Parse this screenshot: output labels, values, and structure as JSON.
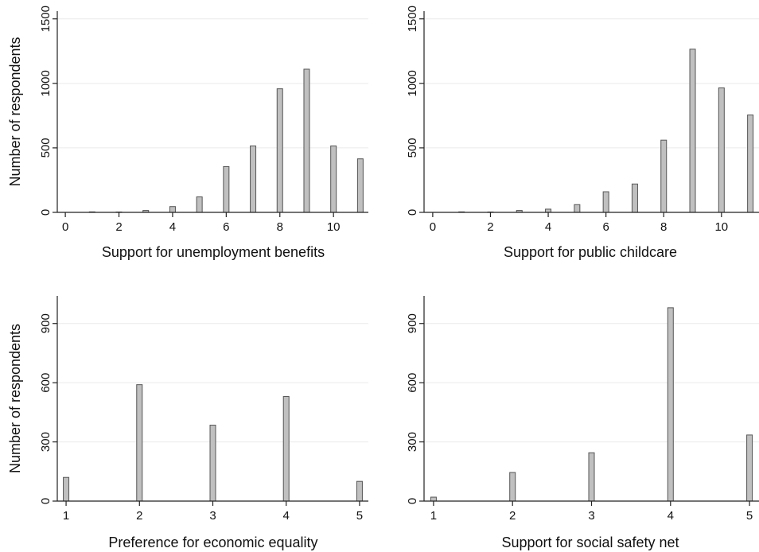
{
  "chart_data": [
    {
      "type": "bar",
      "xlabel": "Support for unemployment benefits",
      "ylabel": "Number of respondents",
      "x": [
        0,
        1,
        2,
        3,
        4,
        5,
        6,
        7,
        8,
        9,
        10,
        11
      ],
      "values": [
        0,
        4,
        3,
        15,
        45,
        120,
        355,
        515,
        958,
        1110,
        515,
        415
      ],
      "xlim": [
        -0.3,
        11.3
      ],
      "ylim": [
        0,
        1560
      ],
      "xticks": [
        0,
        2,
        4,
        6,
        8,
        10
      ],
      "yticks": [
        0,
        500,
        1000,
        1500
      ],
      "grid": true,
      "bar_color": "#c0c0c0"
    },
    {
      "type": "bar",
      "xlabel": "Support for public childcare",
      "ylabel": "",
      "x": [
        0,
        1,
        2,
        3,
        4,
        5,
        6,
        7,
        8,
        9,
        10,
        11
      ],
      "values": [
        0,
        4,
        3,
        15,
        25,
        60,
        160,
        220,
        560,
        1265,
        965,
        755
      ],
      "xlim": [
        -0.3,
        11.3
      ],
      "ylim": [
        0,
        1560
      ],
      "xticks": [
        0,
        2,
        4,
        6,
        8,
        10
      ],
      "yticks": [
        0,
        500,
        1000,
        1500
      ],
      "grid": true,
      "bar_color": "#c0c0c0"
    },
    {
      "type": "bar",
      "xlabel": "Preference for economic equality",
      "ylabel": "Number of respondents",
      "x": [
        1,
        2,
        3,
        4,
        5
      ],
      "values": [
        120,
        590,
        385,
        530,
        100
      ],
      "xlim": [
        0.88,
        5.12
      ],
      "ylim": [
        0,
        1040
      ],
      "xticks": [
        1,
        2,
        3,
        4,
        5
      ],
      "yticks": [
        0,
        300,
        600,
        900
      ],
      "grid": true,
      "bar_color": "#c0c0c0"
    },
    {
      "type": "bar",
      "xlabel": "Support for social safety net",
      "ylabel": "",
      "x": [
        1,
        2,
        3,
        4,
        5
      ],
      "values": [
        20,
        145,
        245,
        980,
        335
      ],
      "xlim": [
        0.88,
        5.12
      ],
      "ylim": [
        0,
        1040
      ],
      "xticks": [
        1,
        2,
        3,
        4,
        5
      ],
      "yticks": [
        0,
        300,
        600,
        900
      ],
      "grid": true,
      "bar_color": "#c0c0c0"
    }
  ]
}
